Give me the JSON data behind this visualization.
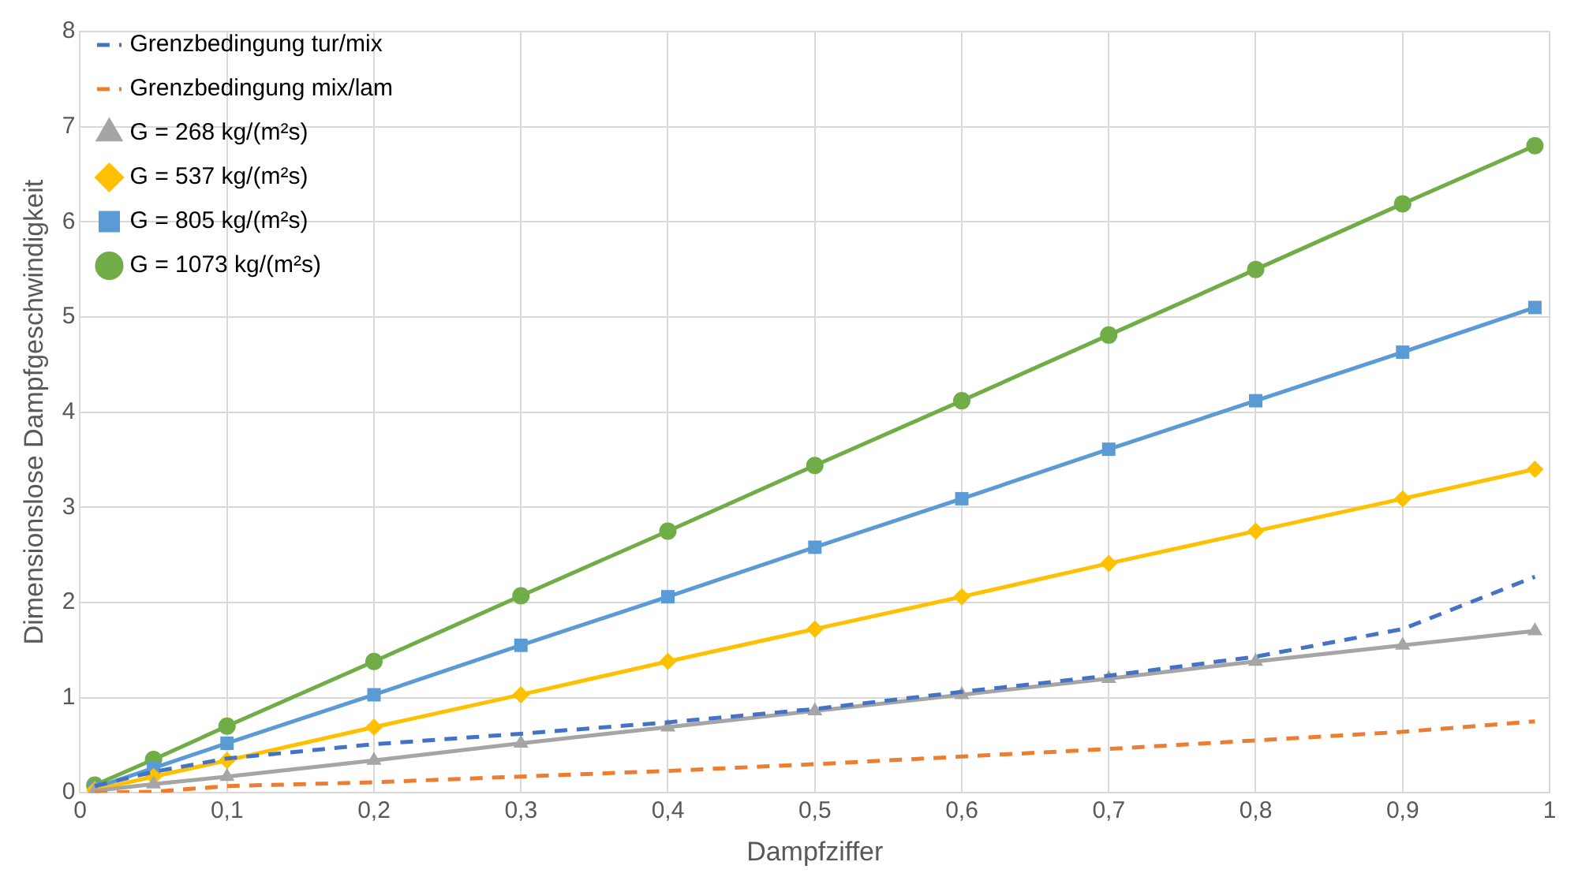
{
  "chart_data": {
    "type": "line",
    "xlabel": "Dampfziffer",
    "ylabel": "Dimensionslose Dampfgeschwindigkeit",
    "x": [
      0.01,
      0.05,
      0.1,
      0.2,
      0.3,
      0.4,
      0.5,
      0.6,
      0.7,
      0.8,
      0.9,
      0.99
    ],
    "series": [
      {
        "name": "Grenzbedingung tur/mix",
        "color": "#4472c4",
        "line_style": "dashed",
        "marker": "none",
        "values": [
          0.07,
          0.22,
          0.36,
          0.51,
          0.62,
          0.74,
          0.88,
          1.06,
          1.23,
          1.43,
          1.72,
          2.27
        ]
      },
      {
        "name": "Grenzbedingung mix/lam",
        "color": "#ed7d31",
        "line_style": "dashed",
        "marker": "none",
        "values": [
          0,
          0.01,
          0.07,
          0.11,
          0.17,
          0.23,
          0.3,
          0.38,
          0.46,
          0.55,
          0.64,
          0.75
        ]
      },
      {
        "name": "G = 268 kg/(m²s)",
        "color": "#a5a5a5",
        "line_style": "solid",
        "marker": "triangle",
        "values": [
          0.02,
          0.09,
          0.17,
          0.34,
          0.52,
          0.69,
          0.86,
          1.03,
          1.2,
          1.38,
          1.55,
          1.7
        ]
      },
      {
        "name": "G = 537 kg/(m²s)",
        "color": "#ffc000",
        "line_style": "solid",
        "marker": "diamond",
        "values": [
          0.03,
          0.17,
          0.34,
          0.69,
          1.03,
          1.38,
          1.72,
          2.06,
          2.41,
          2.75,
          3.09,
          3.4
        ]
      },
      {
        "name": "G = 805 kg/(m²s)",
        "color": "#5b9bd5",
        "line_style": "solid",
        "marker": "square",
        "values": [
          0.05,
          0.26,
          0.52,
          1.03,
          1.55,
          2.06,
          2.58,
          3.09,
          3.61,
          4.12,
          4.63,
          5.1
        ]
      },
      {
        "name": "G = 1073 kg/(m²s)",
        "color": "#70ad47",
        "line_style": "solid",
        "marker": "circle",
        "values": [
          0.08,
          0.35,
          0.7,
          1.38,
          2.07,
          2.75,
          3.44,
          4.12,
          4.81,
          5.5,
          6.19,
          6.8
        ]
      }
    ],
    "xlim": [
      0,
      1
    ],
    "xticks": [
      0,
      {
        "value": 0.1,
        "label": "0,1"
      },
      {
        "value": 0.2,
        "label": "0,2"
      },
      {
        "value": 0.3,
        "label": "0,3"
      },
      {
        "value": 0.4,
        "label": "0,4"
      },
      {
        "value": 0.5,
        "label": "0,5"
      },
      {
        "value": 0.6,
        "label": "0,6"
      },
      {
        "value": 0.7,
        "label": "0,7"
      },
      {
        "value": 0.8,
        "label": "0,8"
      },
      {
        "value": 0.9,
        "label": "0,9"
      },
      1
    ],
    "ylim": [
      0,
      8
    ],
    "yticks": [
      0,
      1,
      2,
      3,
      4,
      5,
      6,
      7,
      8
    ],
    "grid": true,
    "legend": "top left"
  }
}
